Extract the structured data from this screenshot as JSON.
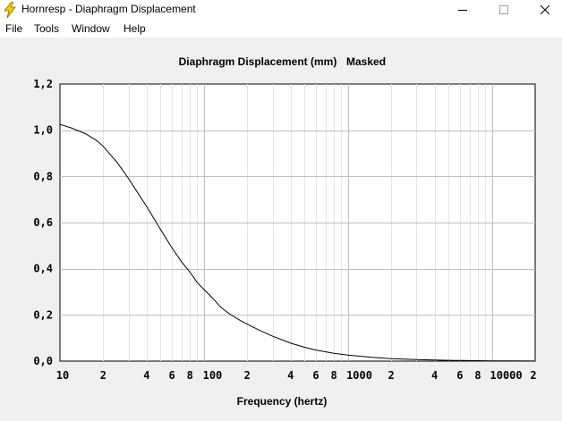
{
  "window": {
    "title": "Hornresp - Diaphragm Displacement",
    "icon": "lightning-bolt-icon",
    "controls": [
      "minimize-icon",
      "maximize-icon",
      "close-icon"
    ]
  },
  "menu": {
    "items": [
      "File",
      "Tools",
      "Window",
      "Help"
    ]
  },
  "chart_data": {
    "type": "line",
    "title": "Diaphragm Displacement (mm)",
    "subtitle": "Masked",
    "xlabel": "Frequency (hertz)",
    "ylabel": "",
    "xscale": "log",
    "xlim": [
      10,
      20000
    ],
    "ylim": [
      0,
      1.2
    ],
    "grid": true,
    "legend": "none",
    "line_color": "#000000",
    "x_ticks": [
      {
        "value": 10,
        "label": "10"
      },
      {
        "value": 20,
        "label": "2"
      },
      {
        "value": 40,
        "label": "4"
      },
      {
        "value": 60,
        "label": "6"
      },
      {
        "value": 80,
        "label": "8"
      },
      {
        "value": 100,
        "label": "100"
      },
      {
        "value": 200,
        "label": "2"
      },
      {
        "value": 400,
        "label": "4"
      },
      {
        "value": 600,
        "label": "6"
      },
      {
        "value": 800,
        "label": "8"
      },
      {
        "value": 1000,
        "label": "1000"
      },
      {
        "value": 2000,
        "label": "2"
      },
      {
        "value": 4000,
        "label": "4"
      },
      {
        "value": 6000,
        "label": "6"
      },
      {
        "value": 8000,
        "label": "8"
      },
      {
        "value": 10000,
        "label": "10000"
      },
      {
        "value": 20000,
        "label": "2"
      }
    ],
    "y_ticks": [
      {
        "value": 0,
        "label": "0,0"
      },
      {
        "value": 0.2,
        "label": "0,2"
      },
      {
        "value": 0.4,
        "label": "0,4"
      },
      {
        "value": 0.6,
        "label": "0,6"
      },
      {
        "value": 0.8,
        "label": "0,8"
      },
      {
        "value": 1.0,
        "label": "1,0"
      },
      {
        "value": 1.2,
        "label": "1,2"
      }
    ],
    "series": [
      {
        "x": [
          10,
          12,
          15,
          18,
          20,
          25,
          30,
          35,
          40,
          50,
          60,
          70,
          80,
          90,
          100,
          110,
          120,
          130,
          150,
          180,
          200,
          250,
          300,
          400,
          500,
          600,
          800,
          1000,
          1500,
          2000,
          3000,
          4000,
          5000,
          6000,
          8000,
          10000,
          15000,
          20000
        ],
        "y": [
          1.025,
          1.01,
          0.985,
          0.955,
          0.93,
          0.86,
          0.79,
          0.725,
          0.67,
          0.57,
          0.49,
          0.43,
          0.385,
          0.34,
          0.31,
          0.285,
          0.26,
          0.235,
          0.205,
          0.175,
          0.16,
          0.13,
          0.108,
          0.078,
          0.06,
          0.048,
          0.034,
          0.026,
          0.016,
          0.011,
          0.0065,
          0.0045,
          0.0033,
          0.0026,
          0.0018,
          0.0013,
          0.0008,
          0.0005
        ]
      }
    ]
  }
}
